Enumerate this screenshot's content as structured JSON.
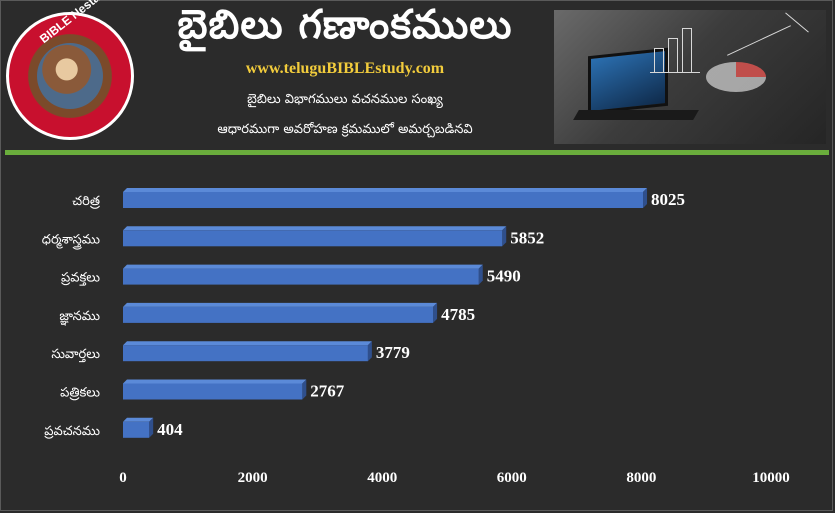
{
  "header": {
    "title": "బైబిలు గణాంకములు",
    "url": "www.teluguBIBLEstudy.com",
    "subtitle_line1": "బైబిలు విభాగములు వచనముల సంఖ్య",
    "subtitle_line2": "ఆధారముగా అవరోహణ క్రమములో అమర్చబడినవి",
    "logo_text": "BIBLE Nestam"
  },
  "colors": {
    "background": "#2b2b2b",
    "bar": "#4472c4",
    "bar_top": "#5b8ad8",
    "bar_side": "#2f4f8c",
    "divider": "#6aad3c",
    "url": "#f2cc3c"
  },
  "chart_data": {
    "type": "bar",
    "orientation": "horizontal",
    "categories": [
      "చరిత్ర",
      "ధర్మశాస్త్రము",
      "ప్రవక్తలు",
      "జ్ఞానము",
      "సువార్తలు",
      "పత్రికలు",
      "ప్రవచనము"
    ],
    "values": [
      8025,
      5852,
      5490,
      4785,
      3779,
      2767,
      404
    ],
    "x_ticks": [
      0,
      2000,
      4000,
      6000,
      8000,
      10000
    ],
    "xlim": [
      0,
      10000
    ],
    "grid": false,
    "legend": false
  }
}
